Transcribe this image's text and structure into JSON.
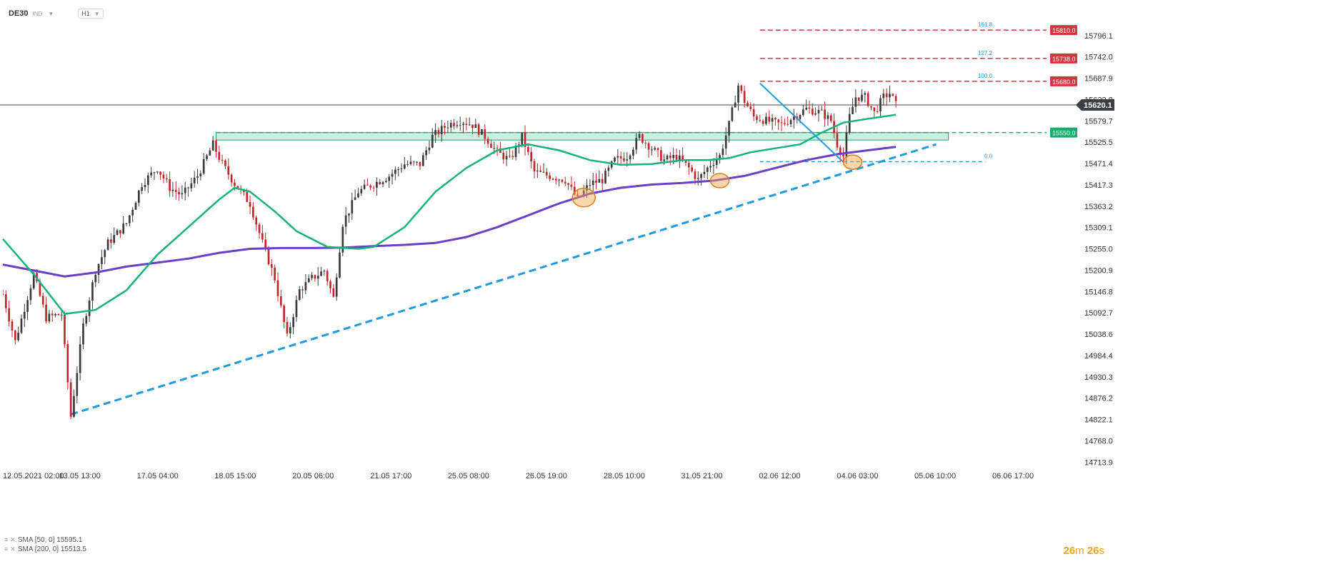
{
  "toolbar": {
    "symbol": "DE30",
    "exchange": "IND",
    "timeframe": "H1"
  },
  "legend": {
    "sma50": "SMA [50, 0] 15595.1",
    "sma200": "SMA [200, 0] 15513.5"
  },
  "countdown": {
    "minutes": "26",
    "min_unit": "m",
    "seconds": "26",
    "sec_unit": "s"
  },
  "colors": {
    "up": "#3a3a3a",
    "down": "#c0272d",
    "sma50": "#14b37d",
    "sma200": "#6b3fc6",
    "trendline": "#1e9be0",
    "resistance": "#d0373f",
    "support_zone": "#1aab6a",
    "fib_label": "#2196f3",
    "current_price_bg": "#3a3f44",
    "highlight": "#f5a54a"
  },
  "chart_data": {
    "type": "candlestick",
    "title": "",
    "ylim": [
      14700,
      15850
    ],
    "y_ticks": [
      15796.1,
      15742.0,
      15687.9,
      15633.8,
      15579.7,
      15525.5,
      15471.4,
      15417.3,
      15363.2,
      15309.1,
      15255.0,
      15200.9,
      15146.8,
      15092.7,
      15038.6,
      14984.4,
      14930.3,
      14876.2,
      14822.1,
      14768.0,
      14713.9
    ],
    "y_tick_labels": [
      "15796.1",
      "15742.0",
      "15687.9",
      "15633.8",
      "15579.7",
      "15525.5",
      "15471.4",
      "15417.3",
      "15363.2",
      "15309.1",
      "15255.0",
      "15200.9",
      "15146.8",
      "15092.7",
      "15038.6",
      "14984.4",
      "14930.3",
      "14876.2",
      "14822.1",
      "14768.0",
      "14713.9"
    ],
    "x_ticks": [
      0,
      24.9,
      50.1,
      75.2,
      100.4,
      125.6,
      150.7,
      175.9,
      201.1,
      226.2,
      251.4,
      276.6,
      301.7,
      326.9
    ],
    "x_tick_labels": [
      "12.05.2021  02:00",
      "13.05  13:00",
      "17.05  04:00",
      "18.05  15:00",
      "20.05  06:00",
      "21.05  17:00",
      "25.05  08:00",
      "26.05  19:00",
      "28.05  10:00",
      "31.05  21:00",
      "02.06  12:00",
      "04.06  03:00",
      "05.06  10:00",
      "06.06  17:00"
    ],
    "x_range": [
      0,
      347
    ],
    "current_price": 15620.1,
    "current_price_label": "15620.1",
    "keypoints": [
      [
        0,
        15140
      ],
      [
        4,
        15020
      ],
      [
        10,
        15190
      ],
      [
        14,
        15080
      ],
      [
        19,
        15090
      ],
      [
        22,
        14830
      ],
      [
        26,
        15060
      ],
      [
        30,
        15200
      ],
      [
        34,
        15270
      ],
      [
        40,
        15320
      ],
      [
        45,
        15420
      ],
      [
        50,
        15460
      ],
      [
        54,
        15410
      ],
      [
        58,
        15390
      ],
      [
        63,
        15440
      ],
      [
        68,
        15520
      ],
      [
        71,
        15470
      ],
      [
        75,
        15420
      ],
      [
        80,
        15370
      ],
      [
        84,
        15270
      ],
      [
        88,
        15180
      ],
      [
        92,
        15030
      ],
      [
        96,
        15150
      ],
      [
        100,
        15180
      ],
      [
        104,
        15200
      ],
      [
        107,
        15130
      ],
      [
        110,
        15320
      ],
      [
        115,
        15400
      ],
      [
        120,
        15420
      ],
      [
        125,
        15440
      ],
      [
        130,
        15470
      ],
      [
        135,
        15470
      ],
      [
        139,
        15540
      ],
      [
        144,
        15570
      ],
      [
        148,
        15580
      ],
      [
        152,
        15570
      ],
      [
        156,
        15540
      ],
      [
        160,
        15500
      ],
      [
        164,
        15480
      ],
      [
        168,
        15540
      ],
      [
        172,
        15450
      ],
      [
        177,
        15440
      ],
      [
        182,
        15430
      ],
      [
        186,
        15380
      ],
      [
        190,
        15420
      ],
      [
        194,
        15430
      ],
      [
        198,
        15480
      ],
      [
        202,
        15490
      ],
      [
        206,
        15540
      ],
      [
        210,
        15510
      ],
      [
        214,
        15480
      ],
      [
        218,
        15490
      ],
      [
        222,
        15460
      ],
      [
        225,
        15430
      ],
      [
        229,
        15470
      ],
      [
        232,
        15490
      ],
      [
        235,
        15570
      ],
      [
        238,
        15670
      ],
      [
        240,
        15630
      ],
      [
        243,
        15590
      ],
      [
        247,
        15580
      ],
      [
        252,
        15570
      ],
      [
        256,
        15590
      ],
      [
        260,
        15610
      ],
      [
        265,
        15600
      ],
      [
        268,
        15580
      ],
      [
        270,
        15520
      ],
      [
        272,
        15490
      ],
      [
        274,
        15590
      ],
      [
        276,
        15640
      ],
      [
        279,
        15640
      ],
      [
        282,
        15600
      ],
      [
        285,
        15640
      ],
      [
        287,
        15650
      ],
      [
        289,
        15620
      ]
    ],
    "sma50": [
      [
        0,
        15280
      ],
      [
        10,
        15190
      ],
      [
        20,
        15090
      ],
      [
        30,
        15100
      ],
      [
        40,
        15150
      ],
      [
        50,
        15240
      ],
      [
        60,
        15310
      ],
      [
        70,
        15380
      ],
      [
        75,
        15410
      ],
      [
        80,
        15400
      ],
      [
        88,
        15350
      ],
      [
        95,
        15300
      ],
      [
        105,
        15260
      ],
      [
        115,
        15255
      ],
      [
        120,
        15260
      ],
      [
        130,
        15310
      ],
      [
        140,
        15400
      ],
      [
        150,
        15460
      ],
      [
        160,
        15505
      ],
      [
        170,
        15520
      ],
      [
        180,
        15505
      ],
      [
        190,
        15480
      ],
      [
        200,
        15468
      ],
      [
        210,
        15470
      ],
      [
        220,
        15480
      ],
      [
        228,
        15480
      ],
      [
        235,
        15485
      ],
      [
        242,
        15500
      ],
      [
        250,
        15510
      ],
      [
        258,
        15520
      ],
      [
        265,
        15550
      ],
      [
        272,
        15575
      ],
      [
        280,
        15585
      ],
      [
        289,
        15595
      ]
    ],
    "sma200": [
      [
        0,
        15215
      ],
      [
        10,
        15200
      ],
      [
        20,
        15185
      ],
      [
        30,
        15195
      ],
      [
        40,
        15210
      ],
      [
        50,
        15220
      ],
      [
        60,
        15230
      ],
      [
        70,
        15245
      ],
      [
        80,
        15255
      ],
      [
        90,
        15257
      ],
      [
        100,
        15257
      ],
      [
        110,
        15258
      ],
      [
        120,
        15262
      ],
      [
        130,
        15265
      ],
      [
        140,
        15270
      ],
      [
        150,
        15285
      ],
      [
        160,
        15310
      ],
      [
        170,
        15340
      ],
      [
        180,
        15370
      ],
      [
        190,
        15395
      ],
      [
        200,
        15410
      ],
      [
        210,
        15418
      ],
      [
        220,
        15422
      ],
      [
        230,
        15428
      ],
      [
        240,
        15440
      ],
      [
        250,
        15460
      ],
      [
        260,
        15480
      ],
      [
        270,
        15495
      ],
      [
        280,
        15505
      ],
      [
        289,
        15513.5
      ]
    ],
    "trendline": {
      "from": [
        22,
        14835
      ],
      "to": [
        302,
        15520
      ]
    },
    "fib_segment": {
      "from": [
        245,
        15675
      ],
      "to": [
        272,
        15475
      ]
    },
    "resistance_levels": [
      {
        "value": 15810.0,
        "label": "15810.0",
        "fib": "161.8",
        "x_start": 245
      },
      {
        "value": 15738.0,
        "label": "15738.0",
        "fib": "127.2",
        "x_start": 245
      },
      {
        "value": 15680.0,
        "label": "15680.0",
        "fib": "100.0",
        "x_start": 245
      }
    ],
    "support": {
      "value": 15550.0,
      "label": "15550.0",
      "zone": [
        15531,
        15550
      ],
      "zone_x": [
        69,
        306
      ]
    },
    "fib_zero": {
      "value": 15476,
      "label": "0.0",
      "x_start": 245,
      "x_end": 318
    },
    "highlights": [
      {
        "x": 188,
        "y": 15385
      },
      {
        "x": 232,
        "y": 15428
      },
      {
        "x": 275,
        "y": 15475
      }
    ]
  }
}
